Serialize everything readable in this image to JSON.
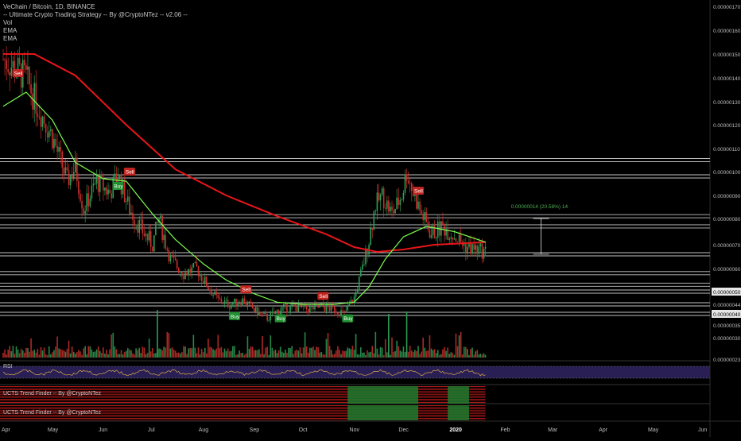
{
  "header": {
    "symbol_line": "VeChain / Bitcoin, 1D, BINANCE",
    "strategy_line": "-- Ultimate Crypto Trading Strategy -- By @CryptoNTez -- v2.06 --",
    "indicators": [
      "Vol",
      "EMA",
      "EMA"
    ]
  },
  "panes": {
    "rsi_label": "RSI",
    "trend1_label": "UCTS Trend Finder -- By @CryptoNTez",
    "trend2_label": "UCTS Trend Finder -- By @CryptoNTez"
  },
  "measure_label": "0.00000014 (20.58%) 14",
  "colors": {
    "background": "#000000",
    "ema_fast": "#7cfc4e",
    "ema_slow": "#e8161a",
    "candle_up": "#2e9e55",
    "candle_down": "#c9302c",
    "buy": "#1f8f2f",
    "sell": "#c0241f",
    "level_line": "#bfbfbf",
    "measure": "#4caf50",
    "rsi_band": "#2a1f55"
  },
  "chart_data": {
    "type": "candlestick",
    "x_axis": {
      "tick_labels": [
        "Apr",
        "May",
        "Jun",
        "Jul",
        "Aug",
        "Sep",
        "Oct",
        "Nov",
        "Dec",
        "2020",
        "Feb",
        "Mar",
        "Apr",
        "May",
        "Jun"
      ]
    },
    "y_axis": {
      "tick_labels": [
        "0.00000170",
        "0.00000160",
        "0.00000150",
        "0.00000140",
        "0.00000130",
        "0.00000120",
        "0.00000110",
        "0.00000100",
        "0.00000090",
        "0.00000080",
        "0.00000070",
        "0.00000060",
        "0.00000050",
        "0.00000044",
        "0.00000040",
        "0.00000035",
        "0.00000030",
        "0.00000023"
      ],
      "range": [
        2.3e-07,
        1.7e-06
      ]
    },
    "price_path": [
      {
        "date": "2019-04-01",
        "price": 1.48e-06
      },
      {
        "date": "2019-04-08",
        "price": 1.44e-06
      },
      {
        "date": "2019-04-15",
        "price": 1.4e-06
      },
      {
        "date": "2019-04-22",
        "price": 1.28e-06
      },
      {
        "date": "2019-05-01",
        "price": 1.15e-06
      },
      {
        "date": "2019-05-10",
        "price": 9.6e-07
      },
      {
        "date": "2019-05-15",
        "price": 1.02e-06
      },
      {
        "date": "2019-05-20",
        "price": 8.4e-07
      },
      {
        "date": "2019-05-28",
        "price": 9.6e-07
      },
      {
        "date": "2019-06-05",
        "price": 9.1e-07
      },
      {
        "date": "2019-06-10",
        "price": 9.9e-07
      },
      {
        "date": "2019-06-17",
        "price": 8.4e-07
      },
      {
        "date": "2019-06-24",
        "price": 7.6e-07
      },
      {
        "date": "2019-07-01",
        "price": 7e-07
      },
      {
        "date": "2019-07-05",
        "price": 8e-07
      },
      {
        "date": "2019-07-12",
        "price": 6.4e-07
      },
      {
        "date": "2019-07-20",
        "price": 5.8e-07
      },
      {
        "date": "2019-07-28",
        "price": 6e-07
      },
      {
        "date": "2019-08-04",
        "price": 5.2e-07
      },
      {
        "date": "2019-08-10",
        "price": 4.6e-07
      },
      {
        "date": "2019-08-17",
        "price": 4.4e-07
      },
      {
        "date": "2019-08-25",
        "price": 4.6e-07
      },
      {
        "date": "2019-09-02",
        "price": 4.1e-07
      },
      {
        "date": "2019-09-09",
        "price": 3.8e-07
      },
      {
        "date": "2019-09-17",
        "price": 4.2e-07
      },
      {
        "date": "2019-09-25",
        "price": 4.3e-07
      },
      {
        "date": "2019-10-04",
        "price": 4.2e-07
      },
      {
        "date": "2019-10-12",
        "price": 4.3e-07
      },
      {
        "date": "2019-10-20",
        "price": 4.2e-07
      },
      {
        "date": "2019-10-26",
        "price": 4e-07
      },
      {
        "date": "2019-11-01",
        "price": 4.7e-07
      },
      {
        "date": "2019-11-06",
        "price": 6e-07
      },
      {
        "date": "2019-11-10",
        "price": 7.2e-07
      },
      {
        "date": "2019-11-14",
        "price": 8.6e-07
      },
      {
        "date": "2019-11-18",
        "price": 9e-07
      },
      {
        "date": "2019-11-24",
        "price": 8.2e-07
      },
      {
        "date": "2019-11-30",
        "price": 9e-07
      },
      {
        "date": "2019-12-03",
        "price": 1e-06
      },
      {
        "date": "2019-12-07",
        "price": 9.1e-07
      },
      {
        "date": "2019-12-12",
        "price": 8.2e-07
      },
      {
        "date": "2019-12-18",
        "price": 7.4e-07
      },
      {
        "date": "2019-12-25",
        "price": 7.7e-07
      },
      {
        "date": "2020-01-02",
        "price": 7.3e-07
      },
      {
        "date": "2020-01-08",
        "price": 6.9e-07
      },
      {
        "date": "2020-01-14",
        "price": 6.8e-07
      },
      {
        "date": "2020-01-20",
        "price": 6.7e-07
      }
    ],
    "ema_fast": [
      {
        "date": "2019-04-01",
        "value": 1.28e-06
      },
      {
        "date": "2019-04-15",
        "value": 1.34e-06
      },
      {
        "date": "2019-05-01",
        "value": 1.22e-06
      },
      {
        "date": "2019-05-15",
        "value": 1.04e-06
      },
      {
        "date": "2019-06-01",
        "value": 9.7e-07
      },
      {
        "date": "2019-06-15",
        "value": 9.6e-07
      },
      {
        "date": "2019-07-01",
        "value": 8.2e-07
      },
      {
        "date": "2019-07-15",
        "value": 7.2e-07
      },
      {
        "date": "2019-08-01",
        "value": 6.2e-07
      },
      {
        "date": "2019-08-15",
        "value": 5.5e-07
      },
      {
        "date": "2019-09-01",
        "value": 4.9e-07
      },
      {
        "date": "2019-09-15",
        "value": 4.5e-07
      },
      {
        "date": "2019-10-01",
        "value": 4.4e-07
      },
      {
        "date": "2019-10-20",
        "value": 4.4e-07
      },
      {
        "date": "2019-11-01",
        "value": 4.5e-07
      },
      {
        "date": "2019-11-10",
        "value": 5.2e-07
      },
      {
        "date": "2019-11-20",
        "value": 6.4e-07
      },
      {
        "date": "2019-12-01",
        "value": 7.3e-07
      },
      {
        "date": "2019-12-15",
        "value": 7.7e-07
      },
      {
        "date": "2020-01-01",
        "value": 7.5e-07
      },
      {
        "date": "2020-01-20",
        "value": 7.1e-07
      }
    ],
    "ema_slow": [
      {
        "date": "2019-04-01",
        "value": 1.5e-06
      },
      {
        "date": "2019-04-20",
        "value": 1.5e-06
      },
      {
        "date": "2019-05-15",
        "value": 1.41e-06
      },
      {
        "date": "2019-06-15",
        "value": 1.2e-06
      },
      {
        "date": "2019-07-15",
        "value": 1.01e-06
      },
      {
        "date": "2019-08-15",
        "value": 9e-07
      },
      {
        "date": "2019-09-15",
        "value": 8.1e-07
      },
      {
        "date": "2019-10-15",
        "value": 7.4e-07
      },
      {
        "date": "2019-11-01",
        "value": 6.9e-07
      },
      {
        "date": "2019-11-15",
        "value": 6.7e-07
      },
      {
        "date": "2019-12-01",
        "value": 6.8e-07
      },
      {
        "date": "2019-12-20",
        "value": 7e-07
      },
      {
        "date": "2020-01-20",
        "value": 7.1e-07
      }
    ],
    "signals": [
      {
        "label": "Sell",
        "date": "2019-04-10",
        "price": 1.42e-06
      },
      {
        "label": "Buy",
        "date": "2019-06-10",
        "price": 9.4e-07
      },
      {
        "label": "Sell",
        "date": "2019-06-17",
        "price": 1e-06
      },
      {
        "label": "Sell",
        "date": "2019-08-27",
        "price": 5.1e-07
      },
      {
        "label": "Buy",
        "date": "2019-08-20",
        "price": 3.9e-07
      },
      {
        "label": "Buy",
        "date": "2019-09-17",
        "price": 3.8e-07
      },
      {
        "label": "Sell",
        "date": "2019-10-13",
        "price": 4.8e-07
      },
      {
        "label": "Buy",
        "date": "2019-10-28",
        "price": 3.8e-07
      },
      {
        "label": "Sell",
        "date": "2019-12-10",
        "price": 9.2e-07
      }
    ],
    "levels": [
      1.05e-06,
      9.8e-07,
      8.1e-07,
      7.7e-07,
      6.6e-07,
      5.8e-07,
      5.3e-07,
      5e-07,
      4.4e-07,
      4e-07
    ]
  }
}
